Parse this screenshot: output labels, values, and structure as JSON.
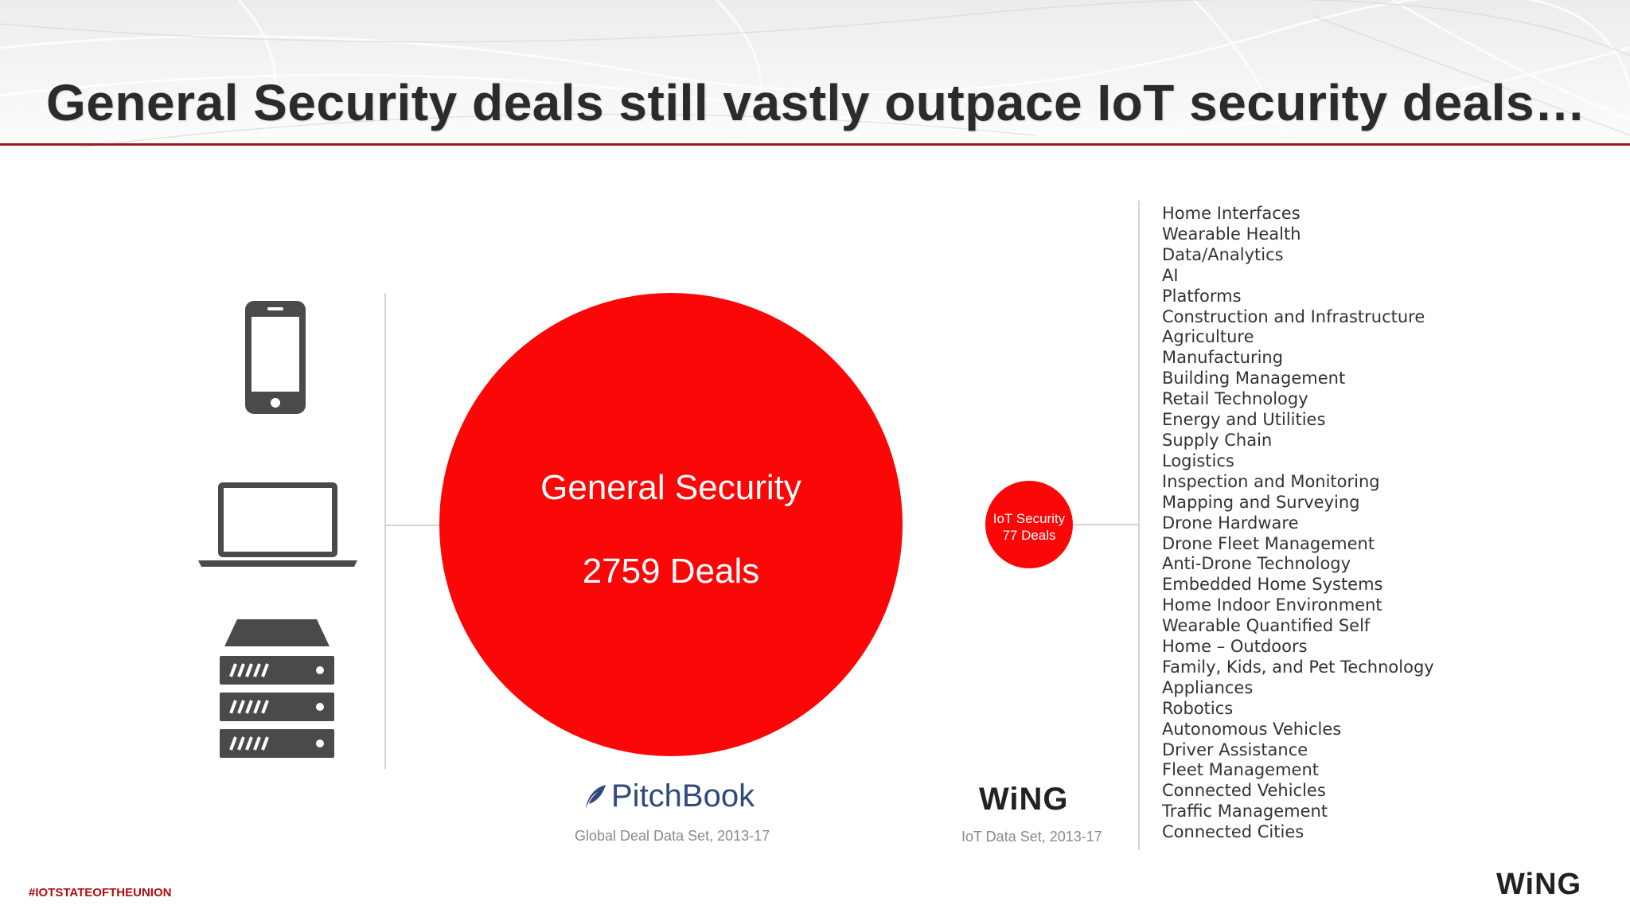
{
  "slide": {
    "title": "General Security deals still vastly outpace IoT security deals…",
    "hashtag": "#IOTSTATEOFTHEUNION",
    "brand_logo": "WiNG"
  },
  "devices": [
    "smartphone-icon",
    "laptop-icon",
    "server-icon"
  ],
  "general_security": {
    "label": "General Security",
    "deals": "2759 Deals",
    "color": "#fb0707",
    "source_logo": "PitchBook",
    "source_caption": "Global Deal Data Set, 2013-17"
  },
  "iot_security": {
    "label": "IoT Security",
    "deals": "77 Deals",
    "color": "#fb0707",
    "source_logo": "WiNG",
    "source_caption": "IoT Data Set, 2013-17"
  },
  "iot_categories": [
    "Home Interfaces",
    "Wearable Health",
    "Data/Analytics",
    "AI",
    "Platforms",
    "Construction and Infrastructure",
    "Agriculture",
    "Manufacturing",
    "Building Management",
    "Retail Technology",
    "Energy and Utilities",
    "Supply Chain",
    "Logistics",
    "Inspection and Monitoring",
    "Mapping and Surveying",
    "Drone Hardware",
    "Drone Fleet Management",
    "Anti-Drone Technology",
    "Embedded Home Systems",
    "Home Indoor Environment",
    "Wearable Quantified Self",
    "Home – Outdoors",
    "Family, Kids, and Pet Technology",
    "Appliances",
    "Robotics",
    "Autonomous Vehicles",
    "Driver Assistance",
    "Fleet Management",
    "Connected Vehicles",
    "Traffic Management",
    "Connected Cities"
  ],
  "colors": {
    "accent_red": "#fb0707",
    "title_rule": "#9e1b1b",
    "icon_gray": "#4a4a4a",
    "pitchbook_blue": "#2f4a78"
  }
}
